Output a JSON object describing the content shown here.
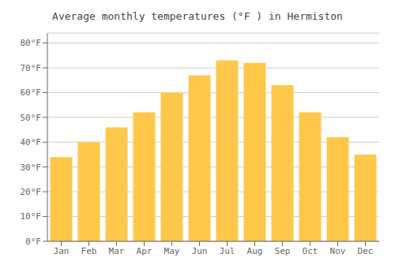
{
  "chart_data": {
    "type": "bar",
    "title": "Average monthly temperatures (°F ) in Hermiston",
    "categories": [
      "Jan",
      "Feb",
      "Mar",
      "Apr",
      "May",
      "Jun",
      "Jul",
      "Aug",
      "Sep",
      "Oct",
      "Nov",
      "Dec"
    ],
    "values": [
      34,
      40,
      46,
      52,
      60,
      67,
      73,
      72,
      63,
      52,
      42,
      35
    ],
    "color": "#FFC84A",
    "ylim": [
      0,
      84
    ],
    "yticks": [
      {
        "value": 0,
        "label": "0°F"
      },
      {
        "value": 10,
        "label": "10°F"
      },
      {
        "value": 20,
        "label": "20°F"
      },
      {
        "value": 30,
        "label": "30°F"
      },
      {
        "value": 40,
        "label": "40°F"
      },
      {
        "value": 50,
        "label": "50°F"
      },
      {
        "value": 60,
        "label": "60°F"
      },
      {
        "value": 70,
        "label": "70°F"
      },
      {
        "value": 80,
        "label": "80°F"
      }
    ],
    "grid": true
  }
}
